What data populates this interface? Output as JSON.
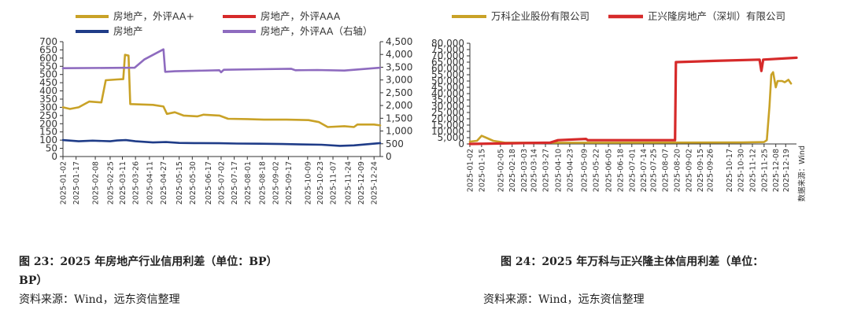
{
  "chart_data": [
    {
      "type": "line",
      "title": "",
      "y_left_range": [
        0,
        700
      ],
      "y_left_ticks": [
        "0",
        "50",
        "100",
        "150",
        "200",
        "250",
        "300",
        "350",
        "400",
        "450",
        "500",
        "550",
        "600",
        "650",
        "700"
      ],
      "y_right_range": [
        0,
        4500
      ],
      "y_right_ticks": [
        "0",
        "500",
        "1,000",
        "1,500",
        "2,000",
        "2,500",
        "3,000",
        "3,500",
        "4,000",
        "4,500"
      ],
      "x_range": [
        "2025-01-02",
        "2025-12-31"
      ],
      "x_ticks": [
        "2025-01-02",
        "2025-01-17",
        "2025-02-08",
        "2025-02-25",
        "2025-03-11",
        "2025-03-26",
        "2025-04-11",
        "2025-04-27",
        "2025-05-15",
        "2025-05-30",
        "2025-06-17",
        "2025-07-02",
        "2025-07-17",
        "2025-08-01",
        "2025-08-18",
        "2025-09-02",
        "2025-09-17",
        "2025-10-09",
        "2025-10-23",
        "2025-11-07",
        "2025-11-24",
        "2025-12-09",
        "2025-12-24"
      ],
      "grid": false,
      "legend_position": "top",
      "series": [
        {
          "name": "房地产，外评AA+",
          "color": "#c9a227",
          "axis": "left",
          "points": [
            [
              "2025-01-02",
              300
            ],
            [
              "2025-01-10",
              290
            ],
            [
              "2025-01-20",
              300
            ],
            [
              "2025-02-01",
              335
            ],
            [
              "2025-02-15",
              330
            ],
            [
              "2025-02-20",
              465
            ],
            [
              "2025-03-05",
              470
            ],
            [
              "2025-03-12",
              472
            ],
            [
              "2025-03-14",
              620
            ],
            [
              "2025-03-18",
              615
            ],
            [
              "2025-03-20",
              320
            ],
            [
              "2025-04-15",
              315
            ],
            [
              "2025-04-27",
              305
            ],
            [
              "2025-05-01",
              260
            ],
            [
              "2025-05-10",
              270
            ],
            [
              "2025-05-20",
              250
            ],
            [
              "2025-06-05",
              245
            ],
            [
              "2025-06-12",
              255
            ],
            [
              "2025-06-30",
              250
            ],
            [
              "2025-07-10",
              230
            ],
            [
              "2025-08-01",
              228
            ],
            [
              "2025-08-20",
              225
            ],
            [
              "2025-09-15",
              225
            ],
            [
              "2025-10-10",
              222
            ],
            [
              "2025-10-22",
              210
            ],
            [
              "2025-11-01",
              180
            ],
            [
              "2025-11-20",
              185
            ],
            [
              "2025-12-01",
              180
            ],
            [
              "2025-12-05",
              195
            ],
            [
              "2025-12-24",
              195
            ],
            [
              "2025-12-31",
              190
            ]
          ]
        },
        {
          "name": "房地产，外评AAA",
          "color": "#d62a2a",
          "axis": "left",
          "points": []
        },
        {
          "name": "房地产",
          "color": "#1f3c88",
          "axis": "left",
          "points": [
            [
              "2025-01-02",
              100
            ],
            [
              "2025-01-20",
              93
            ],
            [
              "2025-02-05",
              97
            ],
            [
              "2025-02-25",
              93
            ],
            [
              "2025-03-05",
              98
            ],
            [
              "2025-03-15",
              100
            ],
            [
              "2025-03-26",
              93
            ],
            [
              "2025-04-15",
              86
            ],
            [
              "2025-04-30",
              88
            ],
            [
              "2025-05-15",
              83
            ],
            [
              "2025-06-01",
              82
            ],
            [
              "2025-06-30",
              81
            ],
            [
              "2025-07-20",
              79
            ],
            [
              "2025-08-15",
              78
            ],
            [
              "2025-09-10",
              76
            ],
            [
              "2025-10-01",
              74
            ],
            [
              "2025-10-25",
              72
            ],
            [
              "2025-11-15",
              65
            ],
            [
              "2025-12-01",
              68
            ],
            [
              "2025-12-31",
              82
            ]
          ]
        },
        {
          "name": "房地产，外评AA（右轴）",
          "color": "#8e6bbf",
          "axis": "right",
          "points": [
            [
              "2025-01-02",
              3460
            ],
            [
              "2025-03-25",
              3480
            ],
            [
              "2025-04-05",
              3800
            ],
            [
              "2025-04-27",
              4200
            ],
            [
              "2025-04-29",
              3320
            ],
            [
              "2025-05-10",
              3340
            ],
            [
              "2025-06-30",
              3380
            ],
            [
              "2025-07-02",
              3300
            ],
            [
              "2025-07-05",
              3400
            ],
            [
              "2025-08-15",
              3420
            ],
            [
              "2025-09-20",
              3440
            ],
            [
              "2025-09-25",
              3380
            ],
            [
              "2025-10-20",
              3390
            ],
            [
              "2025-11-20",
              3370
            ],
            [
              "2025-12-31",
              3480
            ]
          ]
        }
      ]
    },
    {
      "type": "line",
      "title": "",
      "y_range": [
        0,
        80000
      ],
      "y_ticks": [
        "0",
        "5,000",
        "10,000",
        "15,000",
        "20,000",
        "25,000",
        "30,000",
        "35,000",
        "40,000",
        "45,000",
        "50,000",
        "55,000",
        "60,000",
        "65,000",
        "70,000",
        "75,000",
        "80,000"
      ],
      "x_range": [
        "2025-01-02",
        "2025-12-31"
      ],
      "x_ticks": [
        "2025-01-02",
        "2025-01-15",
        "2025-02-05",
        "2025-02-18",
        "2025-03-03",
        "2025-03-14",
        "2025-03-27",
        "2025-04-10",
        "2025-04-23",
        "2025-05-09",
        "2025-05-22",
        "2025-06-05",
        "2025-06-18",
        "2025-07-01",
        "2025-07-14",
        "2025-07-25",
        "2025-08-07",
        "2025-08-20",
        "2025-09-02",
        "2025-09-15",
        "2025-09-26",
        "2025-10-17",
        "2025-10-30",
        "2025-11-12",
        "2025-11-25",
        "2025-12-08",
        "2025-12-19"
      ],
      "grid": false,
      "legend_position": "top",
      "side_note": "数据来源：Wind",
      "series": [
        {
          "name": "万科企业股份有限公司",
          "color": "#c9a227",
          "points": [
            [
              "2025-01-02",
              1800
            ],
            [
              "2025-01-10",
              2500
            ],
            [
              "2025-01-15",
              6500
            ],
            [
              "2025-01-20",
              5000
            ],
            [
              "2025-01-28",
              2500
            ],
            [
              "2025-02-10",
              1000
            ],
            [
              "2025-06-01",
              1000
            ],
            [
              "2025-11-01",
              1200
            ],
            [
              "2025-11-25",
              1500
            ],
            [
              "2025-11-28",
              3000
            ],
            [
              "2025-12-01",
              30000
            ],
            [
              "2025-12-03",
              55000
            ],
            [
              "2025-12-05",
              57000
            ],
            [
              "2025-12-08",
              45000
            ],
            [
              "2025-12-10",
              50000
            ],
            [
              "2025-12-15",
              50000
            ],
            [
              "2025-12-18",
              49000
            ],
            [
              "2025-12-22",
              51000
            ],
            [
              "2025-12-25",
              48000
            ]
          ]
        },
        {
          "name": "正兴隆房地产（深圳）有限公司",
          "color": "#d62a2a",
          "points": [
            [
              "2025-01-02",
              0
            ],
            [
              "2025-04-01",
              1000
            ],
            [
              "2025-04-10",
              3000
            ],
            [
              "2025-05-11",
              4000
            ],
            [
              "2025-05-13",
              3000
            ],
            [
              "2025-08-18",
              3000
            ],
            [
              "2025-08-19",
              65000
            ],
            [
              "2025-10-01",
              66000
            ],
            [
              "2025-11-20",
              67000
            ],
            [
              "2025-11-22",
              58000
            ],
            [
              "2025-11-24",
              67000
            ],
            [
              "2025-12-31",
              68500
            ]
          ]
        }
      ]
    }
  ],
  "captions": {
    "left": "图 23：2025 年房地产行业信用利差（单位：BP）",
    "left_cont": "BP）",
    "right": "图 24：2025 年万科与正兴隆主体信用利差（单位：",
    "source_left": "资料来源：Wind，远东资信整理",
    "source_right": "资料来源：Wind，远东资信整理"
  }
}
